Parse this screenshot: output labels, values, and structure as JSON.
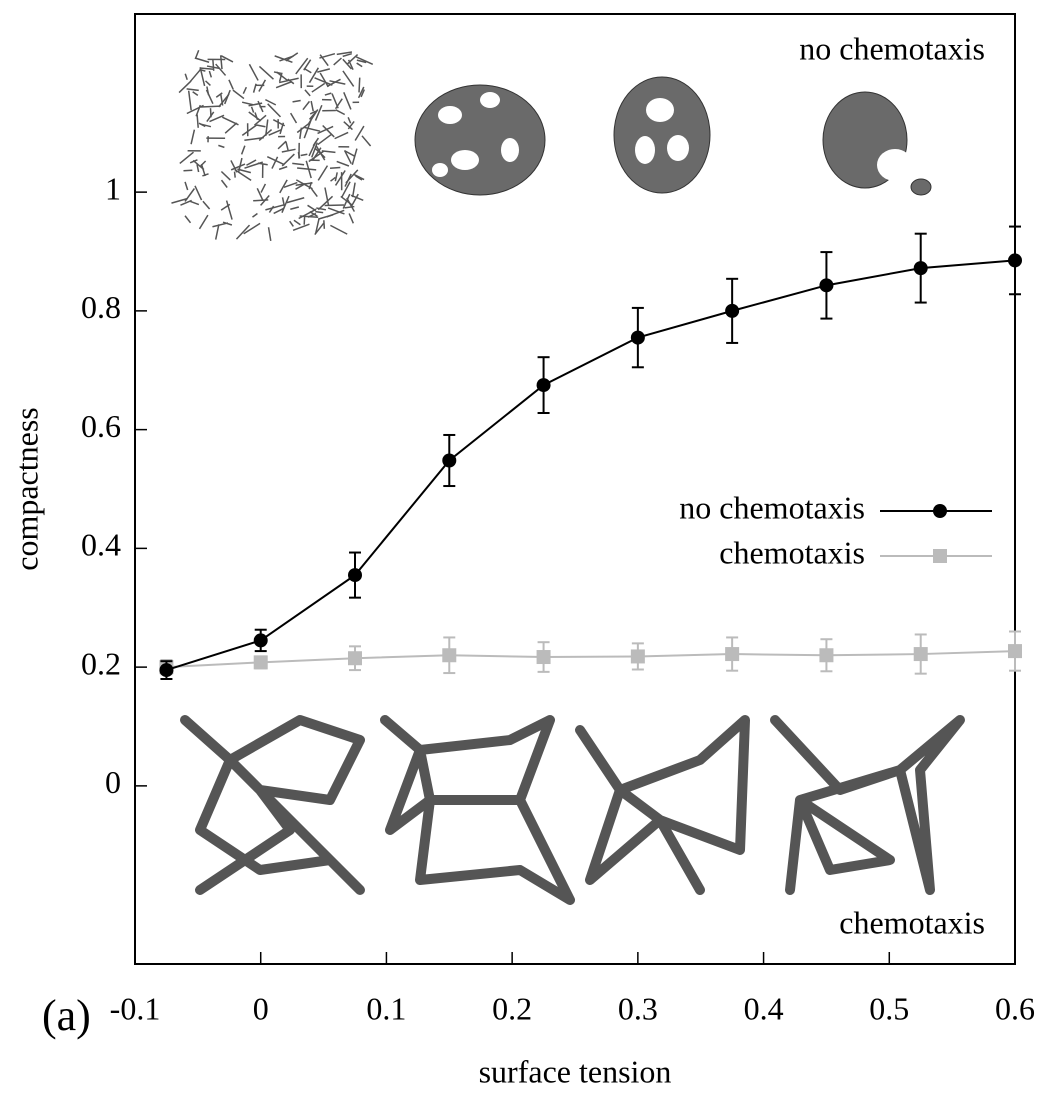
{
  "chart_data": {
    "type": "line",
    "x_label": "surface tension",
    "y_label": "compactness",
    "panel_label": "(a)",
    "annotations": [
      "no chemotaxis",
      "chemotaxis"
    ],
    "x": [
      -0.075,
      0,
      0.075,
      0.15,
      0.225,
      0.3,
      0.375,
      0.45,
      0.525,
      0.6
    ],
    "series": [
      {
        "name": "no chemotaxis",
        "color": "#000000",
        "marker": "circle",
        "values": [
          0.195,
          0.245,
          0.355,
          0.548,
          0.675,
          0.755,
          0.8,
          0.843,
          0.872,
          0.885
        ],
        "errors": [
          0.015,
          0.018,
          0.038,
          0.043,
          0.047,
          0.05,
          0.054,
          0.056,
          0.058,
          0.057
        ]
      },
      {
        "name": "chemotaxis",
        "color": "#bbbbbb",
        "marker": "square",
        "values": [
          0.2,
          0.208,
          0.215,
          0.22,
          0.217,
          0.218,
          0.222,
          0.22,
          0.222,
          0.227
        ],
        "errors": [
          0.012,
          0.01,
          0.02,
          0.03,
          0.025,
          0.022,
          0.028,
          0.027,
          0.033,
          0.033
        ]
      }
    ],
    "xlim": [
      -0.1,
      0.6
    ],
    "xticks": [
      -0.1,
      0,
      0.1,
      0.2,
      0.3,
      0.4,
      0.5,
      0.6
    ],
    "ylim": [
      -0.3,
      1.3
    ],
    "yticks": [
      0,
      0.2,
      0.4,
      0.6,
      0.8,
      1
    ],
    "grid": false,
    "legend": "right"
  }
}
